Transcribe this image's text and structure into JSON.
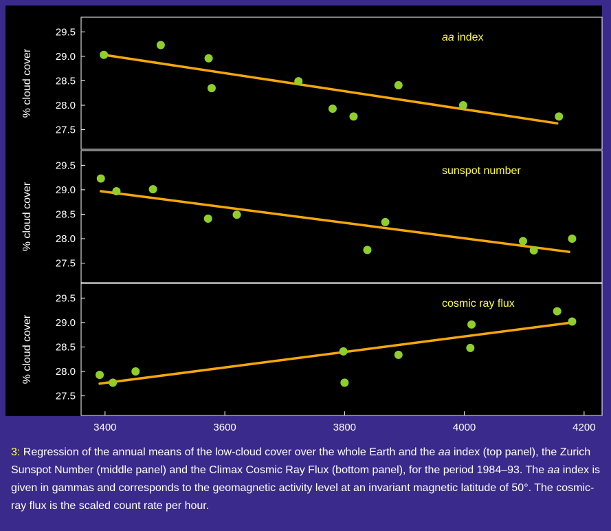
{
  "chart_data": [
    {
      "type": "scatter",
      "title": "aa index",
      "title_parts": [
        "aa",
        " index"
      ],
      "ylabel": "% cloud cover",
      "xlabel": "",
      "xlim": [
        3360,
        4230
      ],
      "ylim": [
        27.1,
        29.8
      ],
      "yticks": [
        "29.5",
        "29.0",
        "28.5",
        "28.0",
        "27.5"
      ],
      "points": [
        {
          "x": 3398,
          "y": 29.03
        },
        {
          "x": 3493,
          "y": 29.23
        },
        {
          "x": 3573,
          "y": 28.96
        },
        {
          "x": 3578,
          "y": 28.35
        },
        {
          "x": 3723,
          "y": 28.49
        },
        {
          "x": 3780,
          "y": 27.93
        },
        {
          "x": 3815,
          "y": 27.77
        },
        {
          "x": 3890,
          "y": 28.41
        },
        {
          "x": 3998,
          "y": 28.0
        },
        {
          "x": 4158,
          "y": 27.77
        }
      ],
      "fit_line": [
        {
          "x": 3398,
          "y": 29.03
        },
        {
          "x": 4155,
          "y": 27.63
        }
      ]
    },
    {
      "type": "scatter",
      "title": "sunspot number",
      "ylabel": "% cloud cover",
      "xlabel": "",
      "xlim": [
        3360,
        4230
      ],
      "ylim": [
        27.1,
        29.8
      ],
      "yticks": [
        "29.5",
        "29.0",
        "28.5",
        "28.0",
        "27.5"
      ],
      "points": [
        {
          "x": 3393,
          "y": 29.23
        },
        {
          "x": 3419,
          "y": 28.97
        },
        {
          "x": 3480,
          "y": 29.01
        },
        {
          "x": 3572,
          "y": 28.41
        },
        {
          "x": 3620,
          "y": 28.49
        },
        {
          "x": 3838,
          "y": 27.77
        },
        {
          "x": 3868,
          "y": 28.34
        },
        {
          "x": 4098,
          "y": 27.95
        },
        {
          "x": 4116,
          "y": 27.76
        },
        {
          "x": 4180,
          "y": 28.0
        }
      ],
      "fit_line": [
        {
          "x": 3393,
          "y": 28.97
        },
        {
          "x": 4175,
          "y": 27.73
        }
      ]
    },
    {
      "type": "scatter",
      "title": "cosmic ray flux",
      "ylabel": "% cloud cover",
      "xlabel": "",
      "xlim": [
        3360,
        4230
      ],
      "ylim": [
        27.1,
        29.8
      ],
      "xticks": [
        "3400",
        "3600",
        "3800",
        "4000",
        "4200"
      ],
      "yticks": [
        "29.5",
        "29.0",
        "28.5",
        "28.0",
        "27.5"
      ],
      "points": [
        {
          "x": 3391,
          "y": 27.93
        },
        {
          "x": 3413,
          "y": 27.77
        },
        {
          "x": 3451,
          "y": 28.0
        },
        {
          "x": 3798,
          "y": 28.41
        },
        {
          "x": 3800,
          "y": 27.77
        },
        {
          "x": 3890,
          "y": 28.34
        },
        {
          "x": 4010,
          "y": 28.48
        },
        {
          "x": 4012,
          "y": 28.96
        },
        {
          "x": 4155,
          "y": 29.23
        },
        {
          "x": 4180,
          "y": 29.02
        }
      ],
      "fit_line": [
        {
          "x": 3391,
          "y": 27.75
        },
        {
          "x": 4180,
          "y": 29.0
        }
      ]
    }
  ],
  "colors": {
    "page_background": "#3a2a8c",
    "plot_background": "#000000",
    "point": "#8fcf2a",
    "fit_line": "#f5a70a",
    "panel_title": "#ffff33",
    "caption_number": "#ffff33",
    "text": "#ffffff"
  },
  "caption": {
    "number": "3:",
    "segments": [
      {
        "text": " Regression of the annual means of the low-cloud cover over the whole Earth and the ",
        "italic": false
      },
      {
        "text": "aa",
        "italic": true
      },
      {
        "text": " index (top panel), the Zurich Sunspot Number (middle panel) and the Climax Cosmic Ray Flux (bottom panel), for the period 1984–93. The ",
        "italic": false
      },
      {
        "text": "aa",
        "italic": true
      },
      {
        "text": " index is given in gammas and corresponds to the geomagnetic activity level at an invariant magnetic latitude of 50°. The cosmic-ray flux is the scaled count rate per hour.",
        "italic": false
      }
    ]
  }
}
